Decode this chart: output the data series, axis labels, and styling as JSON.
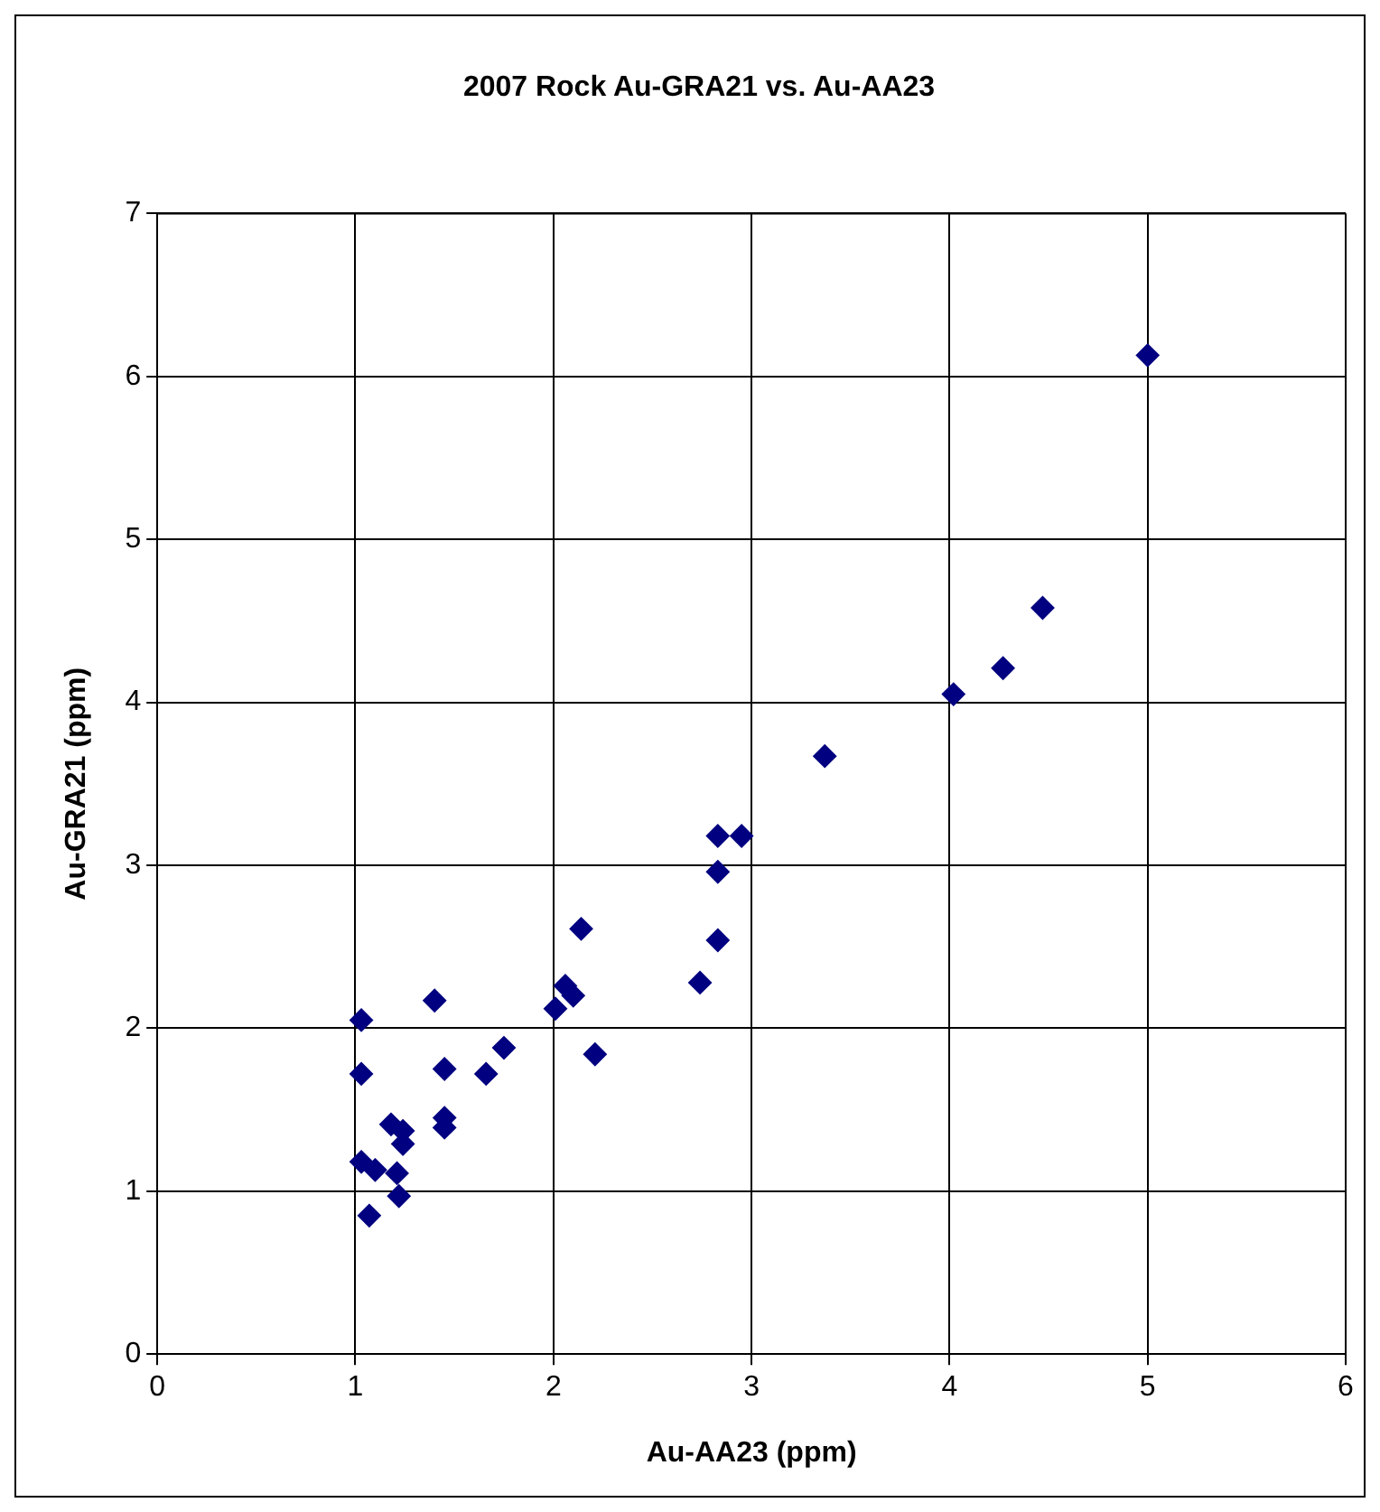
{
  "chart_data": {
    "type": "scatter",
    "title": "2007 Rock Au-GRA21 vs. Au-AA23",
    "xlabel": "Au-AA23 (ppm)",
    "ylabel": "Au-GRA21 (ppm)",
    "x": [
      5.0,
      4.47,
      4.27,
      4.02,
      3.37,
      2.83,
      2.95,
      2.83,
      2.83,
      2.74,
      2.14,
      2.06,
      2.1,
      2.01,
      2.21,
      1.4,
      1.03,
      1.03,
      1.45,
      1.66,
      1.75,
      1.45,
      1.45,
      1.18,
      1.24,
      1.24,
      1.03,
      1.1,
      1.21,
      1.22,
      1.07
    ],
    "series": [
      {
        "color": "#000080",
        "values": [
          6.13,
          4.58,
          4.21,
          4.05,
          3.67,
          3.18,
          3.18,
          2.96,
          2.54,
          2.28,
          2.61,
          2.26,
          2.2,
          2.12,
          1.84,
          2.17,
          2.05,
          1.72,
          1.75,
          1.72,
          1.88,
          1.45,
          1.39,
          1.41,
          1.37,
          1.29,
          1.18,
          1.13,
          1.11,
          0.97,
          0.85
        ]
      }
    ],
    "xlim": [
      0,
      6
    ],
    "xticks": [
      0,
      1,
      2,
      3,
      4,
      5,
      6
    ],
    "ylim": [
      0,
      7
    ],
    "yticks": [
      0,
      1,
      2,
      3,
      4,
      5,
      6,
      7
    ],
    "grid": true,
    "legend": false,
    "marker": "diamond"
  }
}
